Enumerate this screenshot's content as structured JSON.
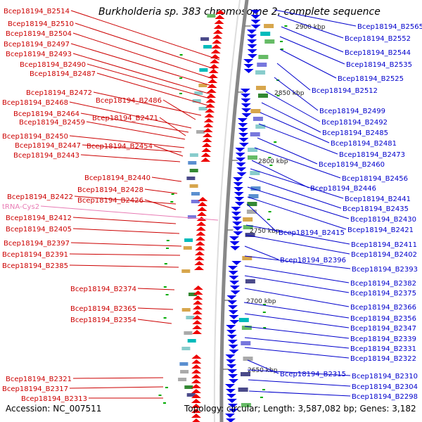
{
  "title": "Burkholderia sp. 383 chromosome 2, complete sequence",
  "accession": "Accession: NC_007511",
  "summary": "Topology: circular; Length: 3,587,082 bp; Genes: 3,182",
  "colors": {
    "left_labels": "#cc0000",
    "right_labels": "#0000cc",
    "trna": "#e87bb4",
    "backbone": "#888888",
    "forward_arrows": "#ee0000",
    "reverse_arrows": "#0000ee"
  },
  "kbp_markers": [
    "2900 kbp",
    "2850 kbp",
    "2800 kbp",
    "2750 kbp",
    "2700 kbp",
    "2650 kbp"
  ],
  "left_labels": [
    "Bcep18194_B2514",
    "Bcep18194_B2510",
    "Bcep18194_B2504",
    "Bcep18194_B2497",
    "Bcep18194_B2493",
    "Bcep18194_B2490",
    "Bcep18194_B2487",
    "Bcep18194_B2472",
    "Bcep18194_B2486",
    "Bcep18194_B2468",
    "Bcep18194_B2464",
    "Bcep18194_B2471",
    "Bcep18194_B2459",
    "Bcep18194_B2450",
    "Bcep18194_B2447",
    "Bcep18194_B2454",
    "Bcep18194_B2443",
    "Bcep18194_B2440",
    "Bcep18194_B2428",
    "Bcep18194_B2422",
    "Bcep18194_B2426",
    "tRNA-Cys2",
    "Bcep18194_B2412",
    "Bcep18194_B2405",
    "Bcep18194_B2397",
    "Bcep18194_B2391",
    "Bcep18194_B2385",
    "Bcep18194_B2374",
    "Bcep18194_B2365",
    "Bcep18194_B2354",
    "Bcep18194_B2321",
    "Bcep18194_B2317",
    "Bcep18194_B2313"
  ],
  "right_labels": [
    "Bcep18194_B2565",
    "Bcep18194_B2552",
    "Bcep18194_B2544",
    "Bcep18194_B2535",
    "Bcep18194_B2525",
    "Bcep18194_B2512",
    "Bcep18194_B2499",
    "Bcep18194_B2492",
    "Bcep18194_B2485",
    "Bcep18194_B2481",
    "Bcep18194_B2473",
    "Bcep18194_B2460",
    "Bcep18194_B2456",
    "Bcep18194_B2446",
    "Bcep18194_B2441",
    "Bcep18194_B2435",
    "Bcep18194_B2430",
    "Bcep18194_B2415",
    "Bcep18194_B2421",
    "Bcep18194_B2411",
    "Bcep18194_B2402",
    "Bcep18194_B2396",
    "Bcep18194_B2393",
    "Bcep18194_B2382",
    "Bcep18194_B2375",
    "Bcep18194_B2366",
    "Bcep18194_B2356",
    "Bcep18194_B2347",
    "Bcep18194_B2339",
    "Bcep18194_B2331",
    "Bcep18194_B2322",
    "Bcep18194_B2315",
    "Bcep18194_B2310",
    "Bcep18194_B2304",
    "Bcep18194_B2298"
  ]
}
